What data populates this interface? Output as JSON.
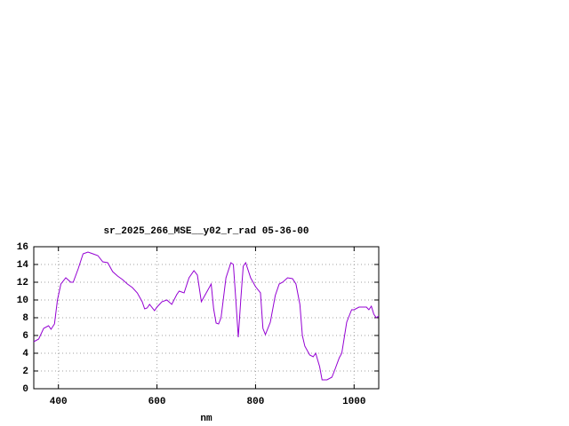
{
  "chart_data": {
    "type": "line",
    "title": "sr_2025_266_MSE__y02_r_rad 05-36-00",
    "x_label": "nm",
    "xlim": [
      350,
      1050
    ],
    "xticks": [
      400,
      600,
      800,
      1000
    ],
    "ylim": [
      0,
      16
    ],
    "yticks": [
      0,
      2,
      4,
      6,
      8,
      10,
      12,
      14,
      16
    ],
    "grid": true,
    "series": [
      {
        "color": "#9400d3",
        "x": [
          350,
          360,
          370,
          380,
          385,
          392,
          398,
          405,
          415,
          425,
          430,
          440,
          450,
          460,
          470,
          480,
          490,
          500,
          510,
          520,
          530,
          540,
          550,
          560,
          570,
          575,
          580,
          585,
          595,
          600,
          610,
          620,
          630,
          640,
          645,
          655,
          665,
          675,
          682,
          690,
          700,
          710,
          715,
          720,
          725,
          730,
          740,
          750,
          755,
          760,
          765,
          770,
          775,
          780,
          790,
          800,
          810,
          815,
          820,
          830,
          840,
          848,
          855,
          865,
          875,
          882,
          890,
          895,
          900,
          910,
          917,
          922,
          930,
          935,
          945,
          955,
          960,
          970,
          975,
          985,
          995,
          1000,
          1010,
          1025,
          1030,
          1035,
          1040,
          1045,
          1050
        ],
        "values": [
          5.3,
          5.6,
          6.8,
          7.1,
          6.7,
          7.3,
          10,
          11.8,
          12.5,
          12.0,
          12.0,
          13.5,
          15.2,
          15.4,
          15.2,
          15.0,
          14.3,
          14.2,
          13.2,
          12.7,
          12.3,
          11.8,
          11.4,
          10.8,
          9.8,
          9.0,
          9.1,
          9.5,
          8.8,
          9.2,
          9.8,
          10.0,
          9.5,
          10.6,
          11.0,
          10.8,
          12.5,
          13.3,
          12.8,
          9.8,
          10.8,
          11.8,
          9.0,
          7.4,
          7.3,
          8.0,
          12.5,
          14.2,
          14.0,
          10.0,
          5.8,
          10,
          13.8,
          14.2,
          12.5,
          11.5,
          10.8,
          6.8,
          6.1,
          7.5,
          10.5,
          11.8,
          12.0,
          12.5,
          12.4,
          11.8,
          9.5,
          6.0,
          4.8,
          3.8,
          3.6,
          4.0,
          2.5,
          1.0,
          1.0,
          1.3,
          2.0,
          3.5,
          4.0,
          7.5,
          8.9,
          8.9,
          9.2,
          9.2,
          8.9,
          9.3,
          8.4,
          8.0,
          8.2
        ]
      }
    ]
  }
}
